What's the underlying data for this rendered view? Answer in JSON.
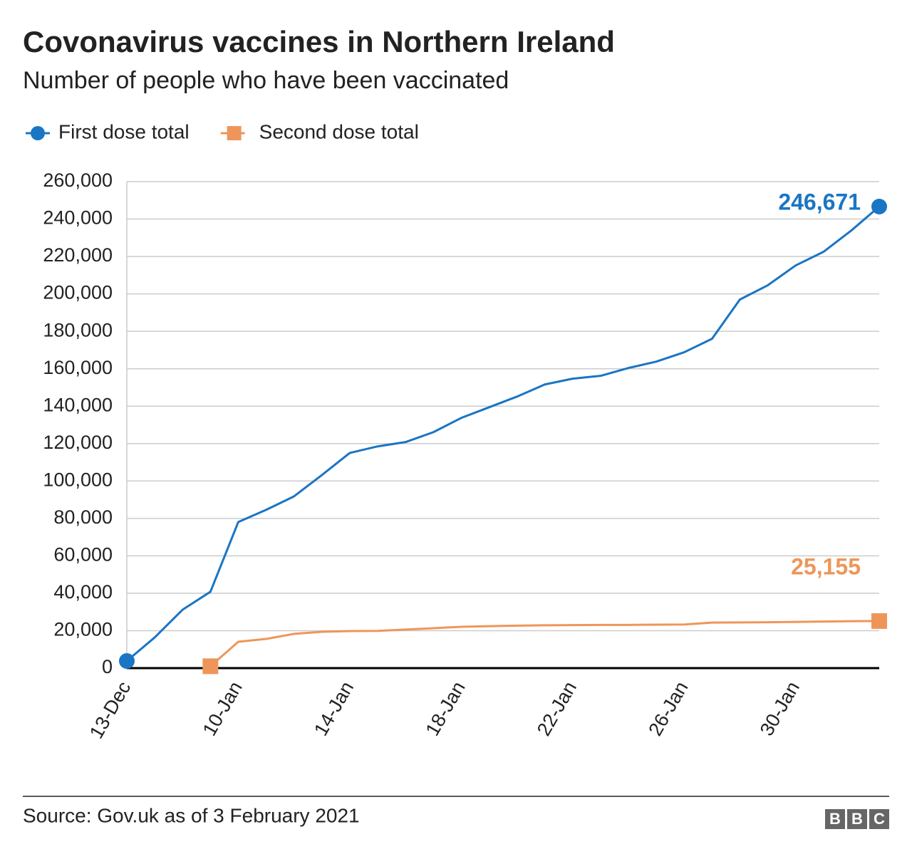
{
  "chart_data": {
    "type": "line",
    "title": "Covonavirus vaccines in Northern Ireland",
    "subtitle": "Number of people who have been vaccinated",
    "source": "Source: Gov.uk as of 3 February 2021",
    "logo": [
      "B",
      "B",
      "C"
    ],
    "categories": [
      "13-Dec",
      null,
      null,
      null,
      "10-Jan",
      null,
      null,
      null,
      "14-Jan",
      null,
      null,
      null,
      "18-Jan",
      null,
      null,
      null,
      "22-Jan",
      null,
      null,
      null,
      "26-Jan",
      null,
      null,
      null,
      "30-Jan",
      null,
      null,
      null
    ],
    "series": [
      {
        "name": "First dose total",
        "color": "#1a75c4",
        "marker": "circle",
        "values": [
          3800,
          16400,
          31200,
          40800,
          78100,
          84600,
          91800,
          103200,
          115000,
          118500,
          120800,
          126100,
          133700,
          139400,
          145100,
          151600,
          154700,
          156200,
          160400,
          163800,
          168800,
          176000,
          197000,
          204600,
          215200,
          222500,
          233900,
          246671
        ],
        "value_labels": [
          null,
          null,
          null,
          null,
          null,
          null,
          null,
          null,
          null,
          null,
          null,
          null,
          null,
          null,
          null,
          null,
          null,
          null,
          null,
          null,
          null,
          null,
          null,
          null,
          null,
          null,
          null,
          "246,671"
        ]
      },
      {
        "name": "Second dose total",
        "color": "#ee965a",
        "marker": "square",
        "values": [
          null,
          null,
          null,
          1000,
          14100,
          15600,
          18300,
          19400,
          19800,
          19900,
          20600,
          21300,
          22100,
          22400,
          22700,
          22900,
          23000,
          23100,
          23100,
          23200,
          23300,
          24300,
          24400,
          24500,
          24700,
          24900,
          25100,
          25155
        ],
        "value_labels": [
          null,
          null,
          null,
          null,
          null,
          null,
          null,
          null,
          null,
          null,
          null,
          null,
          null,
          null,
          null,
          null,
          null,
          null,
          null,
          null,
          null,
          null,
          null,
          null,
          null,
          null,
          null,
          "25,155"
        ]
      }
    ],
    "ylim": [
      0,
      260000
    ],
    "yticks": [
      0,
      {
        "value": 20000,
        "label": "20,000"
      },
      {
        "value": 40000,
        "label": "40,000"
      },
      {
        "value": 60000,
        "label": "60,000"
      },
      {
        "value": 80000,
        "label": "80,000"
      },
      {
        "value": 100000,
        "label": "100,000"
      },
      {
        "value": 120000,
        "label": "120,000"
      },
      {
        "value": 140000,
        "label": "140,000"
      },
      {
        "value": 160000,
        "label": "160,000"
      },
      {
        "value": 180000,
        "label": "180,000"
      },
      {
        "value": 200000,
        "label": "200,000"
      },
      {
        "value": 220000,
        "label": "220,000"
      },
      {
        "value": 240000,
        "label": "240,000"
      },
      {
        "value": 260000,
        "label": "260,000"
      }
    ],
    "grid": true
  }
}
